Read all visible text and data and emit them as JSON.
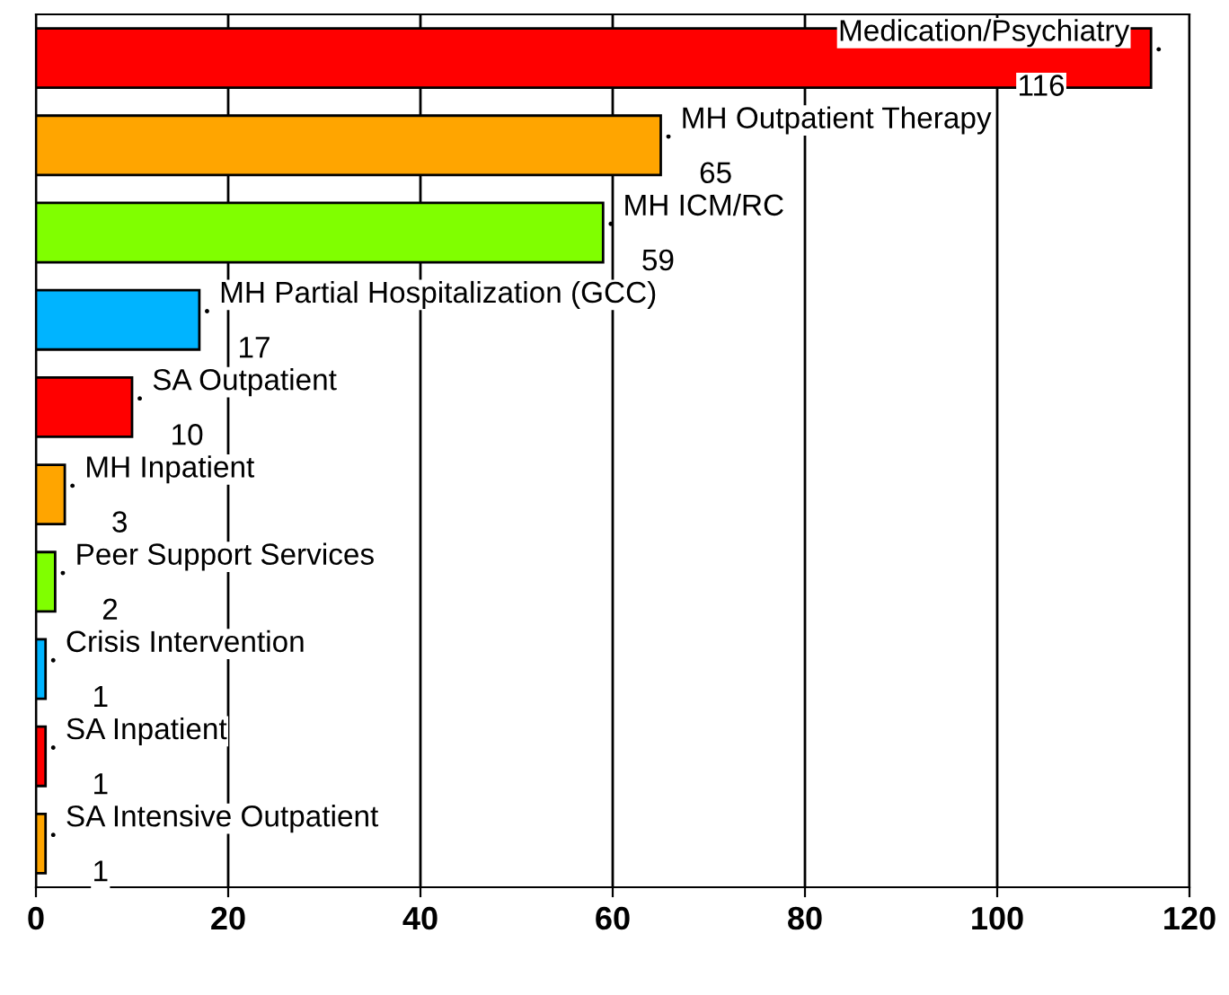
{
  "chart_data": {
    "type": "bar",
    "orientation": "horizontal",
    "categories": [
      "Medication/Psychiatry",
      "MH Outpatient Therapy",
      "MH ICM/RC",
      "MH Partial Hospitalization (GCC)",
      "SA Outpatient",
      "MH Inpatient",
      "Peer Support Services",
      "Crisis Intervention",
      "SA Inpatient",
      "SA Intensive Outpatient"
    ],
    "values": [
      116,
      65,
      59,
      17,
      10,
      3,
      2,
      1,
      1,
      1
    ],
    "colors": [
      "#ff0000",
      "#ffa500",
      "#80ff00",
      "#00b4ff",
      "#ff0000",
      "#ffa500",
      "#80ff00",
      "#00b4ff",
      "#ff0000",
      "#ffa500"
    ],
    "xlim": [
      0,
      120
    ],
    "xticks": [
      0,
      20,
      40,
      60,
      80,
      100,
      120
    ],
    "grid": "x",
    "data_labels": true,
    "tick_labels": "x"
  }
}
